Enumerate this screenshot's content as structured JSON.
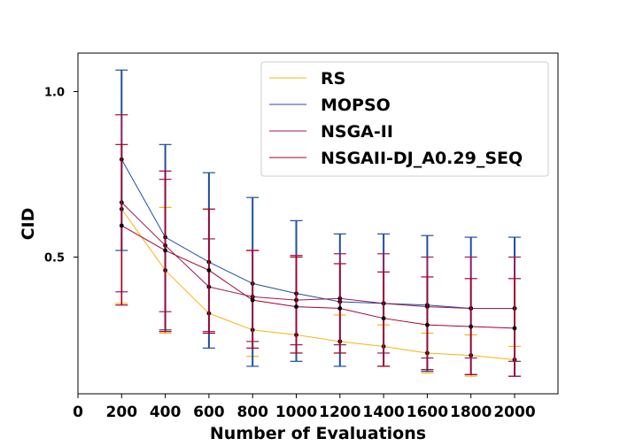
{
  "chart_data": {
    "type": "line",
    "xlabel": "Number of Evaluations",
    "ylabel": "CID",
    "xlim": [
      0,
      2200
    ],
    "ylim": [
      0.12,
      1.15
    ],
    "xticks": [
      0,
      200,
      400,
      600,
      800,
      1000,
      1200,
      1400,
      1600,
      1800,
      2000
    ],
    "xtick_labels": [
      "0",
      "200",
      "400",
      "600",
      "800",
      "1000",
      "1200",
      "1400",
      "1600",
      "1800",
      "2000"
    ],
    "yticks": [
      0.5,
      1.0
    ],
    "ytick_labels": [
      "0.5",
      "1.0"
    ],
    "grid": false,
    "legend_position": "top-right",
    "x": [
      200,
      400,
      600,
      800,
      1000,
      1200,
      1400,
      1600,
      1800,
      2000
    ],
    "series": [
      {
        "name": "RS",
        "color": "#fbb40b",
        "values": [
          0.645,
          0.46,
          0.33,
          0.28,
          0.265,
          0.245,
          0.23,
          0.21,
          0.203,
          0.19
        ],
        "err_low": [
          0.36,
          0.27,
          0.27,
          0.2,
          0.21,
          0.21,
          0.17,
          0.15,
          0.14,
          0.14
        ],
        "err_high": [
          0.93,
          0.65,
          0.645,
          0.52,
          0.505,
          0.325,
          0.295,
          0.27,
          0.265,
          0.23
        ]
      },
      {
        "name": "MOPSO",
        "color": "#1f4ea1",
        "values": [
          0.795,
          0.56,
          0.485,
          0.42,
          0.39,
          0.365,
          0.36,
          0.355,
          0.345,
          0.345
        ],
        "err_low": [
          0.52,
          0.28,
          0.225,
          0.17,
          0.185,
          0.17,
          0.17,
          0.155,
          0.145,
          0.14
        ],
        "err_high": [
          1.065,
          0.84,
          0.755,
          0.68,
          0.61,
          0.57,
          0.57,
          0.565,
          0.56,
          0.56
        ]
      },
      {
        "name": "NSGA-II",
        "color": "#9b1a5a",
        "values": [
          0.665,
          0.535,
          0.41,
          0.38,
          0.37,
          0.375,
          0.36,
          0.35,
          0.345,
          0.345
        ],
        "err_low": [
          0.395,
          0.335,
          0.275,
          0.245,
          0.235,
          0.235,
          0.21,
          0.195,
          0.195,
          0.185
        ],
        "err_high": [
          0.93,
          0.735,
          0.555,
          0.52,
          0.505,
          0.51,
          0.51,
          0.5,
          0.5,
          0.5
        ]
      },
      {
        "name": "NSGAII-DJ_A0.29_SEQ",
        "color": "#a8002a",
        "values": [
          0.595,
          0.52,
          0.46,
          0.37,
          0.35,
          0.345,
          0.315,
          0.295,
          0.29,
          0.285
        ],
        "err_low": [
          0.355,
          0.275,
          0.27,
          0.225,
          0.21,
          0.21,
          0.17,
          0.16,
          0.145,
          0.14
        ],
        "err_high": [
          0.84,
          0.76,
          0.645,
          0.52,
          0.5,
          0.48,
          0.455,
          0.44,
          0.435,
          0.435
        ]
      }
    ]
  }
}
